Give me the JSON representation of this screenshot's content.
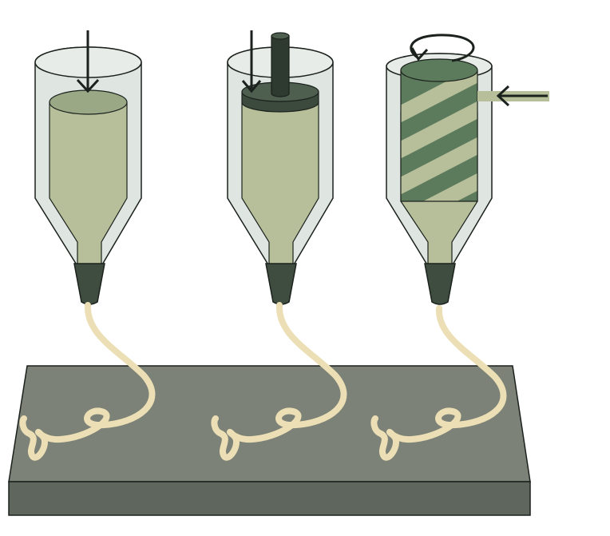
{
  "figure": {
    "panels": [
      {
        "id": "pneumatic",
        "drive": "air-pressure-arrow"
      },
      {
        "id": "piston",
        "drive": "piston-rod"
      },
      {
        "id": "screw",
        "drive": "rotating-screw-with-side-feed"
      }
    ],
    "colors": {
      "background": "#ffffff",
      "barrel_glass": "#dfe5e0",
      "material": "#b7bf9a",
      "material_top": "#9aa886",
      "nozzle": "#3f4d40",
      "piston": "#3c4a3e",
      "screw": "#5c7a5c",
      "filament": "#ecdfb5",
      "platform_top": "#7c8277",
      "platform_front": "#5f665d",
      "outline": "#1b211c"
    }
  }
}
